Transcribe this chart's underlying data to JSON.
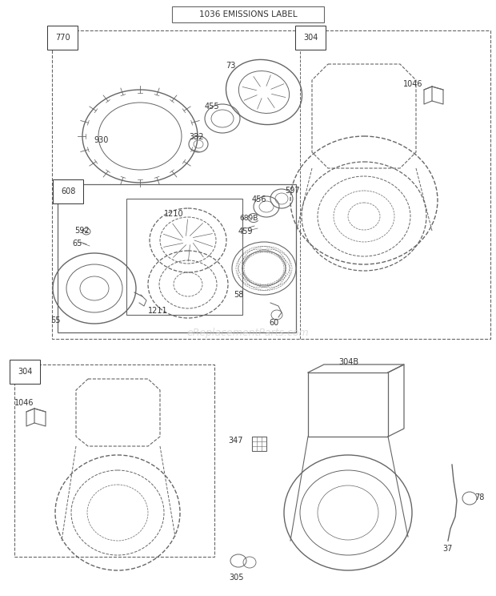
{
  "title": "1036 EMISSIONS LABEL",
  "bg_color": "#ffffff",
  "line_color": "#666666",
  "text_color": "#333333",
  "watermark": "eReplacementParts.com",
  "figsize": [
    6.2,
    7.44
  ],
  "dpi": 100
}
